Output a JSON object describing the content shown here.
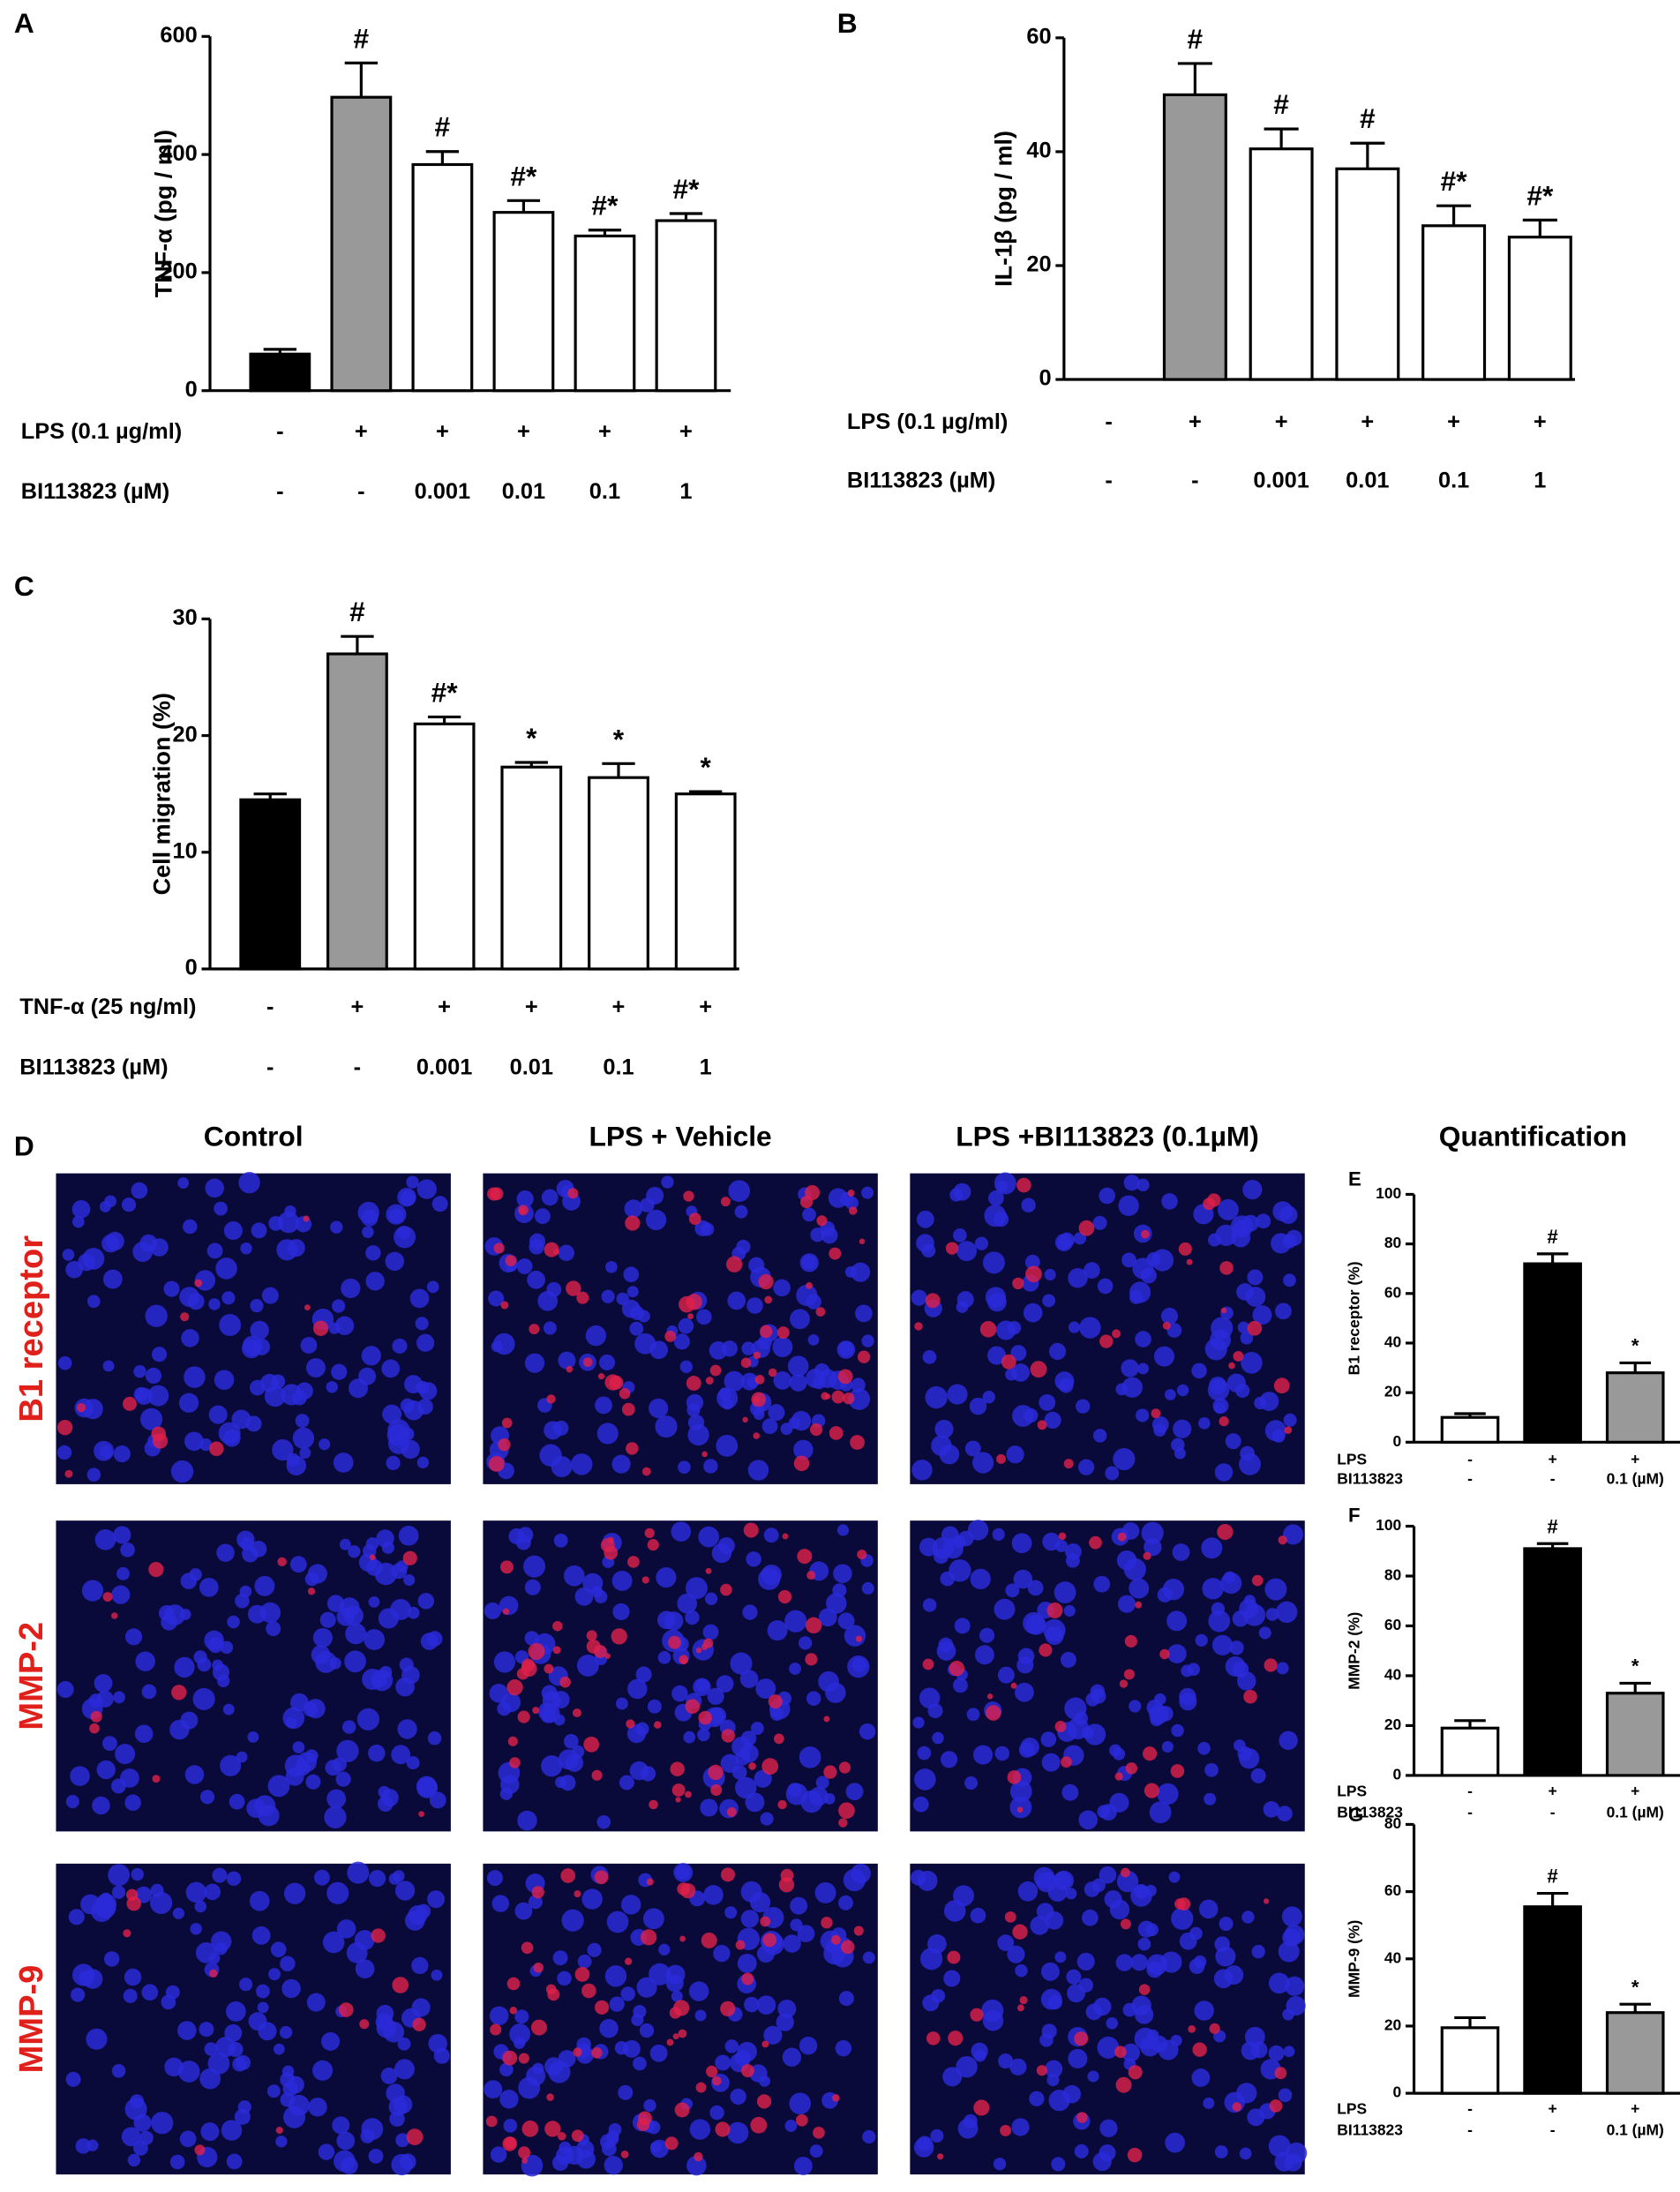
{
  "chart_data": [
    {
      "type": "bar",
      "panel": "A",
      "ylabel": "TNF-α (pg / ml)",
      "ylim": [
        0,
        600
      ],
      "yticks": [
        0,
        200,
        400,
        600
      ],
      "values": [
        62,
        497,
        383,
        302,
        262,
        288
      ],
      "errors": [
        8,
        58,
        22,
        20,
        10,
        12
      ],
      "colors": [
        "#000000",
        "#999999",
        "#ffffff",
        "#ffffff",
        "#ffffff",
        "#ffffff"
      ],
      "annotations": [
        null,
        "#",
        "#",
        "#*",
        "#*",
        "#*"
      ],
      "conditions": [
        {
          "label": "LPS (0.1 µg/ml)",
          "values": [
            "-",
            "+",
            "+",
            "+",
            "+",
            "+"
          ]
        },
        {
          "label": "BI113823  (µM)",
          "values": [
            "-",
            "-",
            "0.001",
            "0.01",
            "0.1",
            "1"
          ]
        }
      ]
    },
    {
      "type": "bar",
      "panel": "B",
      "ylabel": "IL-1β (pg / ml)",
      "ylim": [
        0,
        60
      ],
      "yticks": [
        0,
        20,
        40,
        60
      ],
      "values": [
        null,
        50,
        40.5,
        37,
        27,
        25
      ],
      "errors": [
        null,
        5.5,
        3.5,
        4.5,
        3.5,
        3
      ],
      "colors": [
        "#000000",
        "#999999",
        "#ffffff",
        "#ffffff",
        "#ffffff",
        "#ffffff"
      ],
      "annotations": [
        null,
        "#",
        "#",
        "#",
        "#*",
        "#*"
      ],
      "conditions": [
        {
          "label": "LPS (0.1 µg/ml)",
          "values": [
            "-",
            "+",
            "+",
            "+",
            "+",
            "+"
          ]
        },
        {
          "label": "BI113823  (µM)",
          "values": [
            "-",
            "-",
            "0.001",
            "0.01",
            "0.1",
            "1"
          ]
        }
      ]
    },
    {
      "type": "bar",
      "panel": "C",
      "ylabel": "Cell migration (%)",
      "ylim": [
        0,
        30
      ],
      "yticks": [
        0,
        10,
        20,
        30
      ],
      "values": [
        14.5,
        27,
        21,
        17.3,
        16.4,
        15
      ],
      "errors": [
        0.5,
        1.5,
        0.6,
        0.4,
        1.2,
        0.2
      ],
      "colors": [
        "#000000",
        "#999999",
        "#ffffff",
        "#ffffff",
        "#ffffff",
        "#ffffff"
      ],
      "annotations": [
        null,
        "#",
        "#*",
        "*",
        "*",
        "*"
      ],
      "conditions": [
        {
          "label": "TNF-α (25 ng/ml)",
          "values": [
            "-",
            "+",
            "+",
            "+",
            "+",
            "+"
          ]
        },
        {
          "label": "BI113823  (µM)",
          "values": [
            "-",
            "-",
            "0.001",
            "0.01",
            "0.1",
            "1"
          ]
        }
      ]
    },
    {
      "type": "bar",
      "panel": "E",
      "ylabel": "B1 receptor (%)",
      "ylim": [
        0,
        100
      ],
      "yticks": [
        0,
        20,
        40,
        60,
        80,
        100
      ],
      "values": [
        10,
        72,
        28
      ],
      "errors": [
        1.5,
        4,
        4
      ],
      "colors": [
        "#ffffff",
        "#000000",
        "#999999"
      ],
      "annotations": [
        null,
        "#",
        "*"
      ],
      "conditions": [
        {
          "label": "LPS",
          "values": [
            "-",
            "+",
            "+"
          ]
        },
        {
          "label": "BI113823",
          "values": [
            "-",
            "-",
            "0.1 (µM)"
          ]
        }
      ]
    },
    {
      "type": "bar",
      "panel": "F",
      "ylabel": "MMP-2 (%)",
      "ylim": [
        0,
        100
      ],
      "yticks": [
        0,
        20,
        40,
        60,
        80,
        100
      ],
      "values": [
        19,
        91,
        33
      ],
      "errors": [
        3,
        2,
        4
      ],
      "colors": [
        "#ffffff",
        "#000000",
        "#999999"
      ],
      "annotations": [
        null,
        "#",
        "*"
      ],
      "conditions": [
        {
          "label": "LPS",
          "values": [
            "-",
            "+",
            "+"
          ]
        },
        {
          "label": "BI113823",
          "values": [
            "-",
            "-",
            "0.1 (µM)"
          ]
        }
      ]
    },
    {
      "type": "bar",
      "panel": "G",
      "ylabel": "MMP-9 (%)",
      "ylim": [
        0,
        80
      ],
      "yticks": [
        0,
        20,
        40,
        60,
        80
      ],
      "values": [
        19.5,
        55.5,
        24
      ],
      "errors": [
        3,
        4,
        2.5
      ],
      "colors": [
        "#ffffff",
        "#000000",
        "#999999"
      ],
      "annotations": [
        null,
        "#",
        "*"
      ],
      "conditions": [
        {
          "label": "LPS",
          "values": [
            "-",
            "+",
            "+"
          ]
        },
        {
          "label": "BI113823",
          "values": [
            "-",
            "-",
            "0.1 (µM)"
          ]
        }
      ]
    }
  ],
  "figure": {
    "panel": "D",
    "columns": [
      "Control",
      "LPS + Vehicle",
      "LPS +BI113823 (0.1µM)"
    ],
    "rows": [
      "B1 receptor",
      "MMP-2",
      "MMP-9"
    ],
    "quantification": "Quantification"
  }
}
